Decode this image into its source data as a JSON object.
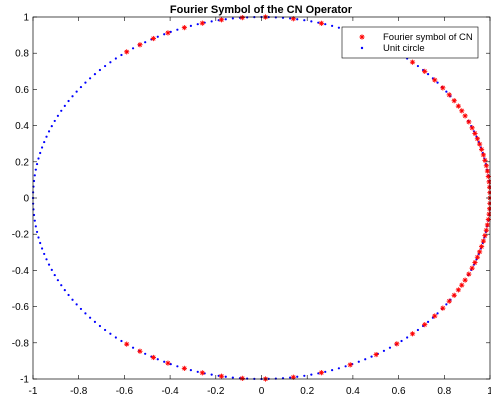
{
  "chart_data": {
    "type": "scatter",
    "title": "Fourier Symbol of the CN Operator",
    "xlabel": "",
    "ylabel": "",
    "xlim": [
      -1,
      1
    ],
    "ylim": [
      -1,
      1
    ],
    "xticks": [
      -1,
      -0.8,
      -0.6,
      -0.4,
      -0.2,
      0,
      0.2,
      0.4,
      0.6,
      0.8,
      1
    ],
    "yticks": [
      -1,
      -0.8,
      -0.6,
      -0.4,
      -0.2,
      0,
      0.2,
      0.4,
      0.6,
      0.8,
      1
    ],
    "xtick_labels": [
      "-1",
      "-0.8",
      "-0.6",
      "-0.4",
      "-0.2",
      "0",
      "0.2",
      "0.4",
      "0.6",
      "0.8",
      "1"
    ],
    "ytick_labels": [
      "-1",
      "-0.8",
      "-0.6",
      "-0.4",
      "-0.2",
      "0",
      "0.2",
      "0.4",
      "0.6",
      "0.8",
      "1"
    ],
    "grid": false,
    "legend_position": "top-right",
    "series": [
      {
        "name": "Fourier symbol of CN",
        "marker": "asterisk",
        "color": "#ff0000",
        "points": [
          [
            1,
            0
          ],
          [
            0.9996,
            0.0296
          ],
          [
            0.9996,
            -0.0296
          ],
          [
            0.9982,
            0.0593
          ],
          [
            0.9982,
            -0.0593
          ],
          [
            0.996,
            0.0891
          ],
          [
            0.996,
            -0.0891
          ],
          [
            0.9929,
            0.1189
          ],
          [
            0.9929,
            -0.1189
          ],
          [
            0.9889,
            0.1489
          ],
          [
            0.9889,
            -0.1489
          ],
          [
            0.984,
            0.1781
          ],
          [
            0.984,
            -0.1781
          ],
          [
            0.9781,
            0.2079
          ],
          [
            0.9781,
            -0.2079
          ],
          [
            0.9712,
            0.238
          ],
          [
            0.9712,
            -0.238
          ],
          [
            0.9632,
            0.2686
          ],
          [
            0.9632,
            -0.2686
          ],
          [
            0.9546,
            0.2978
          ],
          [
            0.9546,
            -0.2978
          ],
          [
            0.945,
            0.3271
          ],
          [
            0.945,
            -0.3271
          ],
          [
            0.9342,
            0.3567
          ],
          [
            0.9342,
            -0.3567
          ],
          [
            0.9218,
            0.3876
          ],
          [
            0.9218,
            -0.3876
          ],
          [
            0.9073,
            0.4205
          ],
          [
            0.9073,
            -0.4205
          ],
          [
            0.8911,
            0.4537
          ],
          [
            0.8911,
            -0.4537
          ],
          [
            0.8764,
            0.4816
          ],
          [
            0.8764,
            -0.4816
          ],
          [
            0.8616,
            0.5076
          ],
          [
            0.8616,
            -0.5076
          ],
          [
            0.8433,
            0.5375
          ],
          [
            0.8433,
            -0.5375
          ],
          [
            0.8216,
            0.57
          ],
          [
            0.8216,
            -0.57
          ],
          [
            0.7935,
            0.6086
          ],
          [
            0.7935,
            -0.6086
          ],
          [
            0.7581,
            0.6521
          ],
          [
            0.7581,
            -0.6521
          ],
          [
            0.7144,
            0.6997
          ],
          [
            0.7144,
            -0.6997
          ],
          [
            0.661,
            0.7504
          ],
          [
            0.661,
            -0.7504
          ],
          [
            0.5923,
            0.8057
          ],
          [
            0.5923,
            -0.8057
          ],
          [
            0.5017,
            0.865
          ],
          [
            0.5017,
            -0.865
          ],
          [
            0.3882,
            0.9216
          ],
          [
            0.3882,
            -0.9216
          ],
          [
            0.2622,
            0.965
          ],
          [
            0.2622,
            -0.965
          ],
          [
            0.1394,
            0.9902
          ],
          [
            0.1394,
            -0.9902
          ],
          [
            0.0176,
            0.9998
          ],
          [
            0.0176,
            -0.9998
          ],
          [
            -0.0838,
            0.9965
          ],
          [
            -0.0838,
            -0.9965
          ],
          [
            -0.1751,
            0.9845
          ],
          [
            -0.1751,
            -0.9845
          ],
          [
            -0.2589,
            0.9659
          ],
          [
            -0.2589,
            -0.9659
          ],
          [
            -0.3375,
            0.9413
          ],
          [
            -0.3375,
            -0.9413
          ],
          [
            -0.4094,
            0.9123
          ],
          [
            -0.4094,
            -0.9123
          ],
          [
            -0.4731,
            0.881
          ],
          [
            -0.4731,
            -0.881
          ],
          [
            -0.5319,
            0.8468
          ],
          [
            -0.5319,
            -0.8468
          ],
          [
            -0.59,
            0.8074
          ],
          [
            -0.59,
            -0.8074
          ]
        ]
      },
      {
        "name": "Unit circle",
        "marker": "dot",
        "color": "#0000ff",
        "points_count": 200
      }
    ]
  }
}
